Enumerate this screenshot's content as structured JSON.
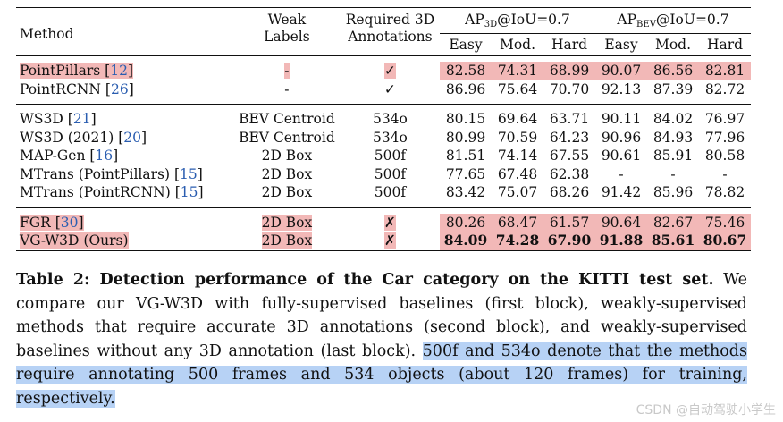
{
  "table": {
    "headers": {
      "method": "Method",
      "weak_labels_line1": "Weak",
      "weak_labels_line2": "Labels",
      "annot_line1": "Required 3D",
      "annot_line2": "Annotations",
      "ap3d_prefix": "AP",
      "ap3d_sub": "3D",
      "ap3d_suffix": "@IoU=0.7",
      "apbev_prefix": "AP",
      "apbev_sub": "BEV",
      "apbev_suffix": "@IoU=0.7",
      "sub_cols": [
        "Easy",
        "Mod.",
        "Hard",
        "Easy",
        "Mod.",
        "Hard"
      ]
    },
    "rows": [
      {
        "name": "PointPillars",
        "ref": "12",
        "weak": "-",
        "annot": "✓",
        "vals": [
          "82.58",
          "74.31",
          "68.99",
          "90.07",
          "86.56",
          "82.81"
        ],
        "highlight": true,
        "bold": false
      },
      {
        "name": "PointRCNN",
        "ref": "26",
        "weak": "-",
        "annot": "✓",
        "vals": [
          "86.96",
          "75.64",
          "70.70",
          "92.13",
          "87.39",
          "82.72"
        ],
        "highlight": false,
        "bold": false
      },
      {
        "name": "WS3D",
        "ref": "21",
        "weak": "BEV Centroid",
        "annot": "534o",
        "vals": [
          "80.15",
          "69.64",
          "63.71",
          "90.11",
          "84.02",
          "76.97"
        ],
        "highlight": false,
        "bold": false
      },
      {
        "name": "WS3D (2021)",
        "ref": "20",
        "weak": "BEV Centroid",
        "annot": "534o",
        "vals": [
          "80.99",
          "70.59",
          "64.23",
          "90.96",
          "84.93",
          "77.96"
        ],
        "highlight": false,
        "bold": false
      },
      {
        "name": "MAP-Gen",
        "ref": "16",
        "weak": "2D Box",
        "annot": "500f",
        "vals": [
          "81.51",
          "74.14",
          "67.55",
          "90.61",
          "85.91",
          "80.58"
        ],
        "highlight": false,
        "bold": false
      },
      {
        "name": "MTrans (PointPillars)",
        "ref": "15",
        "weak": "2D Box",
        "annot": "500f",
        "vals": [
          "77.65",
          "67.48",
          "62.38",
          "-",
          "-",
          "-"
        ],
        "highlight": false,
        "bold": false
      },
      {
        "name": "MTrans (PointRCNN)",
        "ref": "15",
        "weak": "2D Box",
        "annot": "500f",
        "vals": [
          "83.42",
          "75.07",
          "68.26",
          "91.42",
          "85.96",
          "78.82"
        ],
        "highlight": false,
        "bold": false
      },
      {
        "name": "FGR",
        "ref": "30",
        "weak": "2D Box",
        "annot": "✗",
        "vals": [
          "80.26",
          "68.47",
          "61.57",
          "90.64",
          "82.67",
          "75.46"
        ],
        "highlight": true,
        "bold": false
      },
      {
        "name": "VG-W3D (Ours)",
        "ref": "",
        "weak": "2D Box",
        "annot": "✗",
        "vals": [
          "84.09",
          "74.28",
          "67.90",
          "91.88",
          "85.61",
          "80.67"
        ],
        "highlight": true,
        "bold": true
      }
    ]
  },
  "caption": {
    "lead": "Table 2: Detection performance of the Car category on the KITTI test set.",
    "body": " We compare our VG-W3D with fully-supervised baselines (first block), weakly-supervised methods that require accurate 3D annotations (second block), and weakly-supervised baselines without any 3D annotation (last block). ",
    "selected": "500f and 534o denote that the methods require annotating 500 frames and 534 objects (about 120 frames) for training, respectively."
  },
  "watermark": "CSDN @自动驾驶小学生"
}
